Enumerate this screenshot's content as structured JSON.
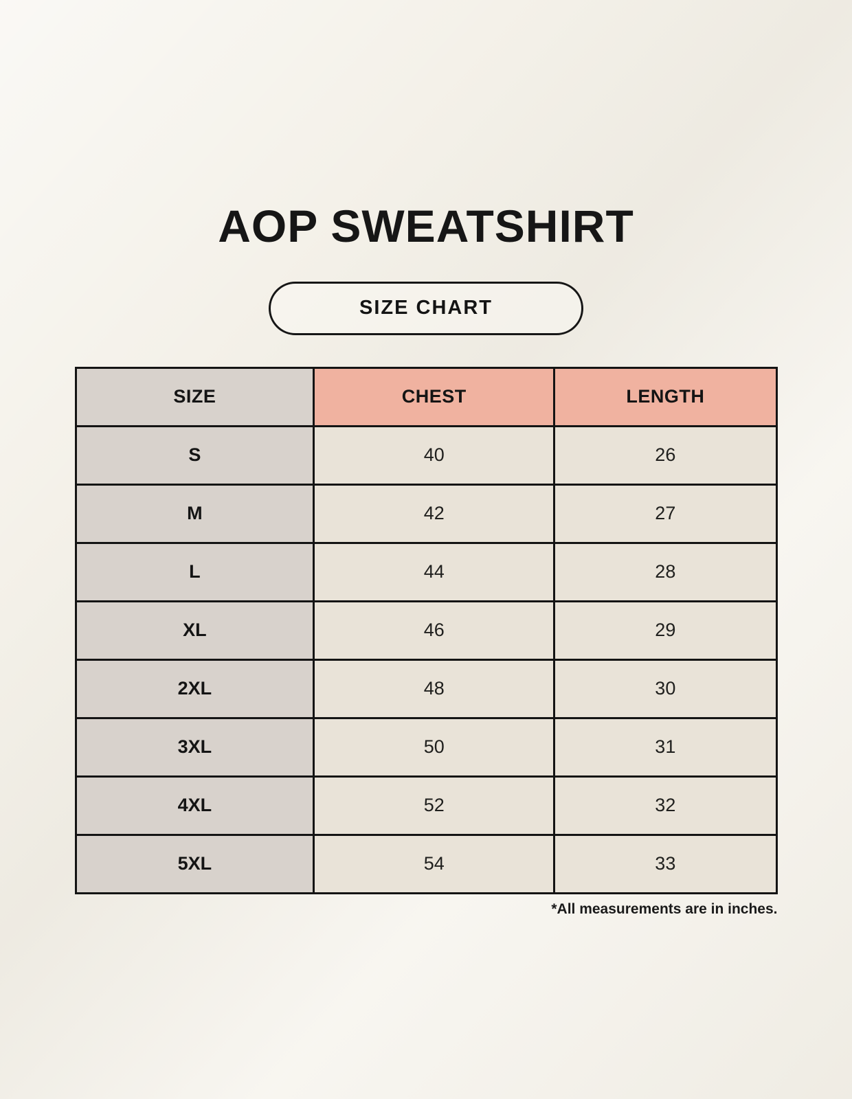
{
  "page": {
    "title": "AOP SWEATSHIRT",
    "button_label": "SIZE CHART",
    "footnote": "*All measurements are in inches."
  },
  "colors": {
    "background": "#f4f1e9",
    "size_column": "#d8d2cc",
    "measure_header": "#f0b2a0",
    "data_cell": "#e9e3d8",
    "border": "#141414",
    "text": "#161616"
  },
  "chart_data": {
    "type": "table",
    "title": "AOP SWEATSHIRT",
    "subtitle": "SIZE CHART",
    "columns": [
      "SIZE",
      "CHEST",
      "LENGTH"
    ],
    "rows": [
      {
        "size": "S",
        "chest": 40,
        "length": 26
      },
      {
        "size": "M",
        "chest": 42,
        "length": 27
      },
      {
        "size": "L",
        "chest": 44,
        "length": 28
      },
      {
        "size": "XL",
        "chest": 46,
        "length": 29
      },
      {
        "size": "2XL",
        "chest": 48,
        "length": 30
      },
      {
        "size": "3XL",
        "chest": 50,
        "length": 31
      },
      {
        "size": "4XL",
        "chest": 52,
        "length": 32
      },
      {
        "size": "5XL",
        "chest": 54,
        "length": 33
      }
    ],
    "units": "inches",
    "note": "*All measurements are in inches."
  }
}
